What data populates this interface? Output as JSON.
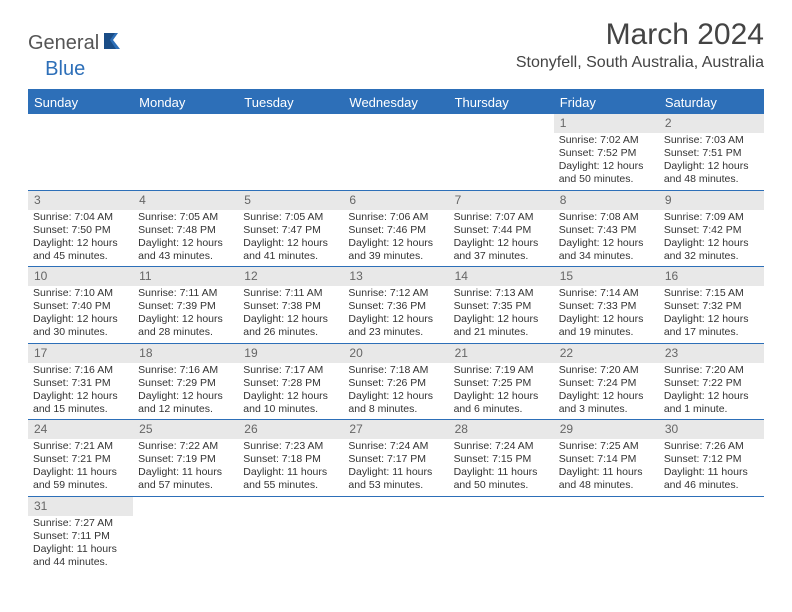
{
  "brand": {
    "part1": "General",
    "part2": "Blue"
  },
  "title": "March 2024",
  "location": "Stonyfell, South Australia, Australia",
  "colors": {
    "accent": "#2d6fb8",
    "header_text": "#ffffff",
    "daynum_bg": "#e8e8e8",
    "daynum_text": "#666666",
    "body_text": "#333333"
  },
  "day_names": [
    "Sunday",
    "Monday",
    "Tuesday",
    "Wednesday",
    "Thursday",
    "Friday",
    "Saturday"
  ],
  "weeks": [
    [
      null,
      null,
      null,
      null,
      null,
      {
        "d": "1",
        "sr": "Sunrise: 7:02 AM",
        "ss": "Sunset: 7:52 PM",
        "dl1": "Daylight: 12 hours",
        "dl2": "and 50 minutes."
      },
      {
        "d": "2",
        "sr": "Sunrise: 7:03 AM",
        "ss": "Sunset: 7:51 PM",
        "dl1": "Daylight: 12 hours",
        "dl2": "and 48 minutes."
      }
    ],
    [
      {
        "d": "3",
        "sr": "Sunrise: 7:04 AM",
        "ss": "Sunset: 7:50 PM",
        "dl1": "Daylight: 12 hours",
        "dl2": "and 45 minutes."
      },
      {
        "d": "4",
        "sr": "Sunrise: 7:05 AM",
        "ss": "Sunset: 7:48 PM",
        "dl1": "Daylight: 12 hours",
        "dl2": "and 43 minutes."
      },
      {
        "d": "5",
        "sr": "Sunrise: 7:05 AM",
        "ss": "Sunset: 7:47 PM",
        "dl1": "Daylight: 12 hours",
        "dl2": "and 41 minutes."
      },
      {
        "d": "6",
        "sr": "Sunrise: 7:06 AM",
        "ss": "Sunset: 7:46 PM",
        "dl1": "Daylight: 12 hours",
        "dl2": "and 39 minutes."
      },
      {
        "d": "7",
        "sr": "Sunrise: 7:07 AM",
        "ss": "Sunset: 7:44 PM",
        "dl1": "Daylight: 12 hours",
        "dl2": "and 37 minutes."
      },
      {
        "d": "8",
        "sr": "Sunrise: 7:08 AM",
        "ss": "Sunset: 7:43 PM",
        "dl1": "Daylight: 12 hours",
        "dl2": "and 34 minutes."
      },
      {
        "d": "9",
        "sr": "Sunrise: 7:09 AM",
        "ss": "Sunset: 7:42 PM",
        "dl1": "Daylight: 12 hours",
        "dl2": "and 32 minutes."
      }
    ],
    [
      {
        "d": "10",
        "sr": "Sunrise: 7:10 AM",
        "ss": "Sunset: 7:40 PM",
        "dl1": "Daylight: 12 hours",
        "dl2": "and 30 minutes."
      },
      {
        "d": "11",
        "sr": "Sunrise: 7:11 AM",
        "ss": "Sunset: 7:39 PM",
        "dl1": "Daylight: 12 hours",
        "dl2": "and 28 minutes."
      },
      {
        "d": "12",
        "sr": "Sunrise: 7:11 AM",
        "ss": "Sunset: 7:38 PM",
        "dl1": "Daylight: 12 hours",
        "dl2": "and 26 minutes."
      },
      {
        "d": "13",
        "sr": "Sunrise: 7:12 AM",
        "ss": "Sunset: 7:36 PM",
        "dl1": "Daylight: 12 hours",
        "dl2": "and 23 minutes."
      },
      {
        "d": "14",
        "sr": "Sunrise: 7:13 AM",
        "ss": "Sunset: 7:35 PM",
        "dl1": "Daylight: 12 hours",
        "dl2": "and 21 minutes."
      },
      {
        "d": "15",
        "sr": "Sunrise: 7:14 AM",
        "ss": "Sunset: 7:33 PM",
        "dl1": "Daylight: 12 hours",
        "dl2": "and 19 minutes."
      },
      {
        "d": "16",
        "sr": "Sunrise: 7:15 AM",
        "ss": "Sunset: 7:32 PM",
        "dl1": "Daylight: 12 hours",
        "dl2": "and 17 minutes."
      }
    ],
    [
      {
        "d": "17",
        "sr": "Sunrise: 7:16 AM",
        "ss": "Sunset: 7:31 PM",
        "dl1": "Daylight: 12 hours",
        "dl2": "and 15 minutes."
      },
      {
        "d": "18",
        "sr": "Sunrise: 7:16 AM",
        "ss": "Sunset: 7:29 PM",
        "dl1": "Daylight: 12 hours",
        "dl2": "and 12 minutes."
      },
      {
        "d": "19",
        "sr": "Sunrise: 7:17 AM",
        "ss": "Sunset: 7:28 PM",
        "dl1": "Daylight: 12 hours",
        "dl2": "and 10 minutes."
      },
      {
        "d": "20",
        "sr": "Sunrise: 7:18 AM",
        "ss": "Sunset: 7:26 PM",
        "dl1": "Daylight: 12 hours",
        "dl2": "and 8 minutes."
      },
      {
        "d": "21",
        "sr": "Sunrise: 7:19 AM",
        "ss": "Sunset: 7:25 PM",
        "dl1": "Daylight: 12 hours",
        "dl2": "and 6 minutes."
      },
      {
        "d": "22",
        "sr": "Sunrise: 7:20 AM",
        "ss": "Sunset: 7:24 PM",
        "dl1": "Daylight: 12 hours",
        "dl2": "and 3 minutes."
      },
      {
        "d": "23",
        "sr": "Sunrise: 7:20 AM",
        "ss": "Sunset: 7:22 PM",
        "dl1": "Daylight: 12 hours",
        "dl2": "and 1 minute."
      }
    ],
    [
      {
        "d": "24",
        "sr": "Sunrise: 7:21 AM",
        "ss": "Sunset: 7:21 PM",
        "dl1": "Daylight: 11 hours",
        "dl2": "and 59 minutes."
      },
      {
        "d": "25",
        "sr": "Sunrise: 7:22 AM",
        "ss": "Sunset: 7:19 PM",
        "dl1": "Daylight: 11 hours",
        "dl2": "and 57 minutes."
      },
      {
        "d": "26",
        "sr": "Sunrise: 7:23 AM",
        "ss": "Sunset: 7:18 PM",
        "dl1": "Daylight: 11 hours",
        "dl2": "and 55 minutes."
      },
      {
        "d": "27",
        "sr": "Sunrise: 7:24 AM",
        "ss": "Sunset: 7:17 PM",
        "dl1": "Daylight: 11 hours",
        "dl2": "and 53 minutes."
      },
      {
        "d": "28",
        "sr": "Sunrise: 7:24 AM",
        "ss": "Sunset: 7:15 PM",
        "dl1": "Daylight: 11 hours",
        "dl2": "and 50 minutes."
      },
      {
        "d": "29",
        "sr": "Sunrise: 7:25 AM",
        "ss": "Sunset: 7:14 PM",
        "dl1": "Daylight: 11 hours",
        "dl2": "and 48 minutes."
      },
      {
        "d": "30",
        "sr": "Sunrise: 7:26 AM",
        "ss": "Sunset: 7:12 PM",
        "dl1": "Daylight: 11 hours",
        "dl2": "and 46 minutes."
      }
    ],
    [
      {
        "d": "31",
        "sr": "Sunrise: 7:27 AM",
        "ss": "Sunset: 7:11 PM",
        "dl1": "Daylight: 11 hours",
        "dl2": "and 44 minutes."
      },
      null,
      null,
      null,
      null,
      null,
      null
    ]
  ]
}
